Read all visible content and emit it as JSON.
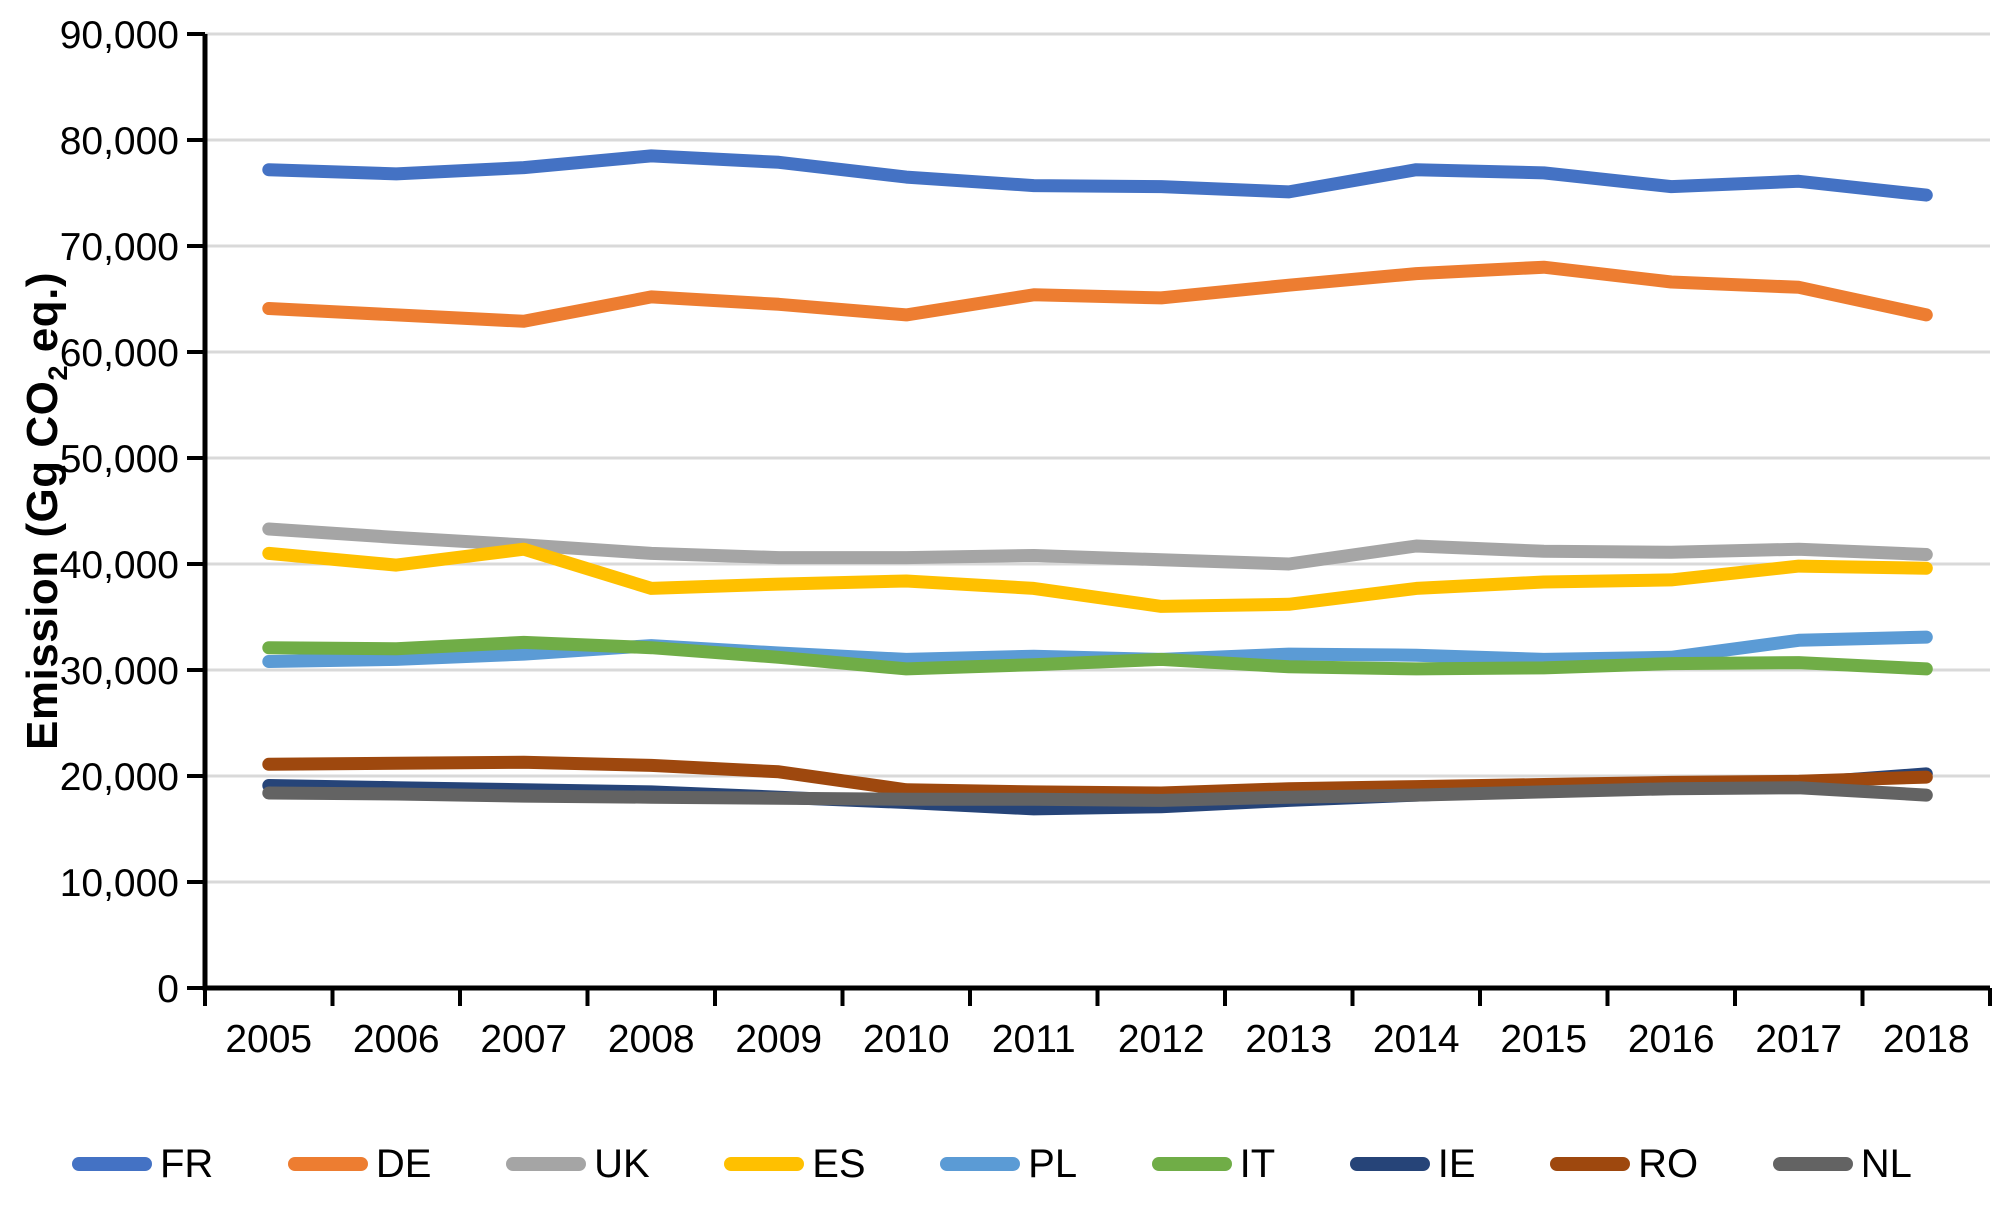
{
  "chart_data": {
    "type": "line",
    "ylabel": "Emission (Gg CO₂ eq.)",
    "ylabel_prefix": "Emission (Gg CO",
    "ylabel_sub": "2",
    "ylabel_suffix": " eq.)",
    "x": [
      "2005",
      "2006",
      "2007",
      "2008",
      "2009",
      "2010",
      "2011",
      "2012",
      "2013",
      "2014",
      "2015",
      "2016",
      "2017",
      "2018"
    ],
    "ylim": [
      0,
      90000
    ],
    "ytick_step": 10000,
    "grid": true,
    "legend_position": "bottom",
    "gridline_color": "#D9D9D9",
    "axis_color": "#000000",
    "series": [
      {
        "name": "FR",
        "color": "#4472C4",
        "values": [
          77200,
          76800,
          77400,
          78500,
          77900,
          76500,
          75700,
          75600,
          75100,
          77200,
          76900,
          75600,
          76100,
          74800
        ]
      },
      {
        "name": "DE",
        "color": "#ED7D31",
        "values": [
          64100,
          63500,
          62900,
          65200,
          64500,
          63500,
          65400,
          65100,
          66300,
          67400,
          68000,
          66600,
          66100,
          63500
        ]
      },
      {
        "name": "UK",
        "color": "#A5A5A5",
        "values": [
          43300,
          42500,
          41800,
          41000,
          40600,
          40600,
          40800,
          40400,
          40000,
          41700,
          41200,
          41100,
          41400,
          40900
        ]
      },
      {
        "name": "ES",
        "color": "#FFC000",
        "values": [
          41000,
          39900,
          41400,
          37700,
          38100,
          38400,
          37700,
          36000,
          36200,
          37700,
          38300,
          38500,
          39800,
          39600
        ]
      },
      {
        "name": "PL",
        "color": "#5B9BD5",
        "values": [
          30800,
          31000,
          31500,
          32300,
          31600,
          31000,
          31300,
          31000,
          31500,
          31400,
          31000,
          31200,
          32800,
          33100
        ]
      },
      {
        "name": "IT",
        "color": "#70AD47",
        "values": [
          32100,
          32000,
          32600,
          32100,
          31200,
          30100,
          30500,
          31000,
          30300,
          30100,
          30200,
          30600,
          30700,
          30100
        ]
      },
      {
        "name": "IE",
        "color": "#264478",
        "values": [
          19100,
          18900,
          18700,
          18500,
          18000,
          17500,
          16900,
          17100,
          17700,
          18200,
          18700,
          19000,
          19300,
          20200
        ]
      },
      {
        "name": "RO",
        "color": "#9E480E",
        "values": [
          21100,
          21200,
          21300,
          21000,
          20400,
          18700,
          18500,
          18400,
          18800,
          19000,
          19200,
          19400,
          19500,
          19900
        ]
      },
      {
        "name": "NL",
        "color": "#636363",
        "values": [
          18400,
          18300,
          18100,
          18000,
          17900,
          17800,
          17800,
          17700,
          18000,
          18200,
          18500,
          18800,
          18900,
          18200
        ]
      }
    ]
  }
}
